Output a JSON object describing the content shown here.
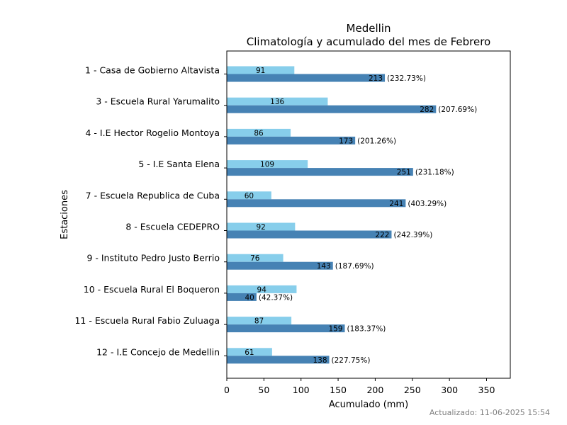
{
  "chart_data": {
    "type": "bar",
    "orientation": "horizontal",
    "title": "Medellin",
    "subtitle": "Climatología y acumulado del mes de Febrero",
    "xlabel": "Acumulado (mm)",
    "ylabel": "Estaciones",
    "xlim": [
      0,
      382
    ],
    "xticks": [
      "0",
      "50",
      "100",
      "150",
      "200",
      "250",
      "300",
      "350"
    ],
    "grid": false,
    "colors": {
      "climatologia": "#87ceeb",
      "acumulado": "#4682b4"
    },
    "categories": [
      "1 - Casa de Gobierno Altavista",
      "3 - Escuela Rural Yarumalito",
      "4 - I.E Hector Rogelio Montoya",
      "5 - I.E Santa Elena",
      "7 - Escuela Republica de Cuba",
      "8 - Escuela CEDEPRO",
      "9 - Instituto Pedro Justo Berrio",
      "10 - Escuela Rural El Boqueron",
      "11 - Escuela Rural Fabio Zuluaga",
      "12 - I.E Concejo de Medellin"
    ],
    "series": [
      {
        "key": "climatologia",
        "values": [
          91,
          136,
          86,
          109,
          60,
          92,
          76,
          94,
          87,
          61
        ]
      },
      {
        "key": "acumulado",
        "values": [
          213,
          282,
          173,
          251,
          241,
          222,
          143,
          40,
          159,
          138
        ],
        "labels": [
          "(232.73%)",
          "(207.69%)",
          "(201.26%)",
          "(231.18%)",
          "(403.29%)",
          "(242.39%)",
          "(187.69%)",
          "(42.37%)",
          "(183.37%)",
          "(227.75%)"
        ]
      }
    ]
  },
  "footer": "Actualizado: 11-06-2025 15:54"
}
